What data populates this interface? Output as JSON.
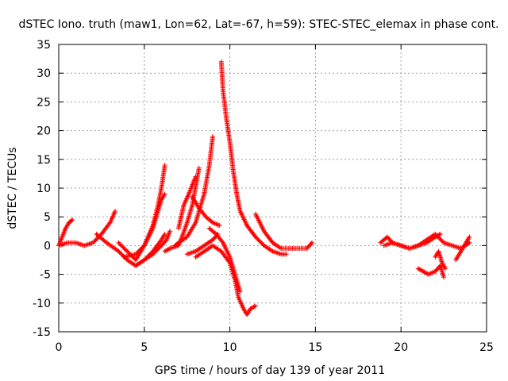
{
  "chart_data": {
    "type": "scatter",
    "title": "dSTEC Iono. truth (maw1, Lon=62, Lat=-67, h=59): STEC-STEC_elemax in phase cont.",
    "xlabel": "GPS time / hours of day 139 of year 2011",
    "ylabel": "dSTEC  / TECUs",
    "xlim": [
      0,
      25
    ],
    "ylim": [
      -15,
      35
    ],
    "xticks": [
      0,
      5,
      10,
      15,
      20,
      25
    ],
    "yticks": [
      -15,
      -10,
      -5,
      0,
      5,
      10,
      15,
      20,
      25,
      30,
      35
    ],
    "grid": true,
    "marker": "+",
    "color": "#ff0000",
    "series": [
      {
        "x": [
          0.0,
          0.2,
          0.4,
          0.6,
          0.8
        ],
        "y": [
          0.0,
          1.5,
          3.0,
          4.0,
          4.5
        ]
      },
      {
        "x": [
          0.0,
          0.5,
          1.0,
          1.5,
          2.0,
          2.5,
          3.0,
          3.3
        ],
        "y": [
          0.0,
          0.5,
          0.5,
          0.0,
          0.5,
          2.0,
          4.0,
          6.0
        ]
      },
      {
        "x": [
          2.2,
          2.8,
          3.5,
          4.0,
          4.5,
          5.0,
          5.5,
          6.0,
          6.2
        ],
        "y": [
          2.0,
          0.5,
          -1.0,
          -2.5,
          -3.5,
          -2.5,
          -1.0,
          1.0,
          2.0
        ]
      },
      {
        "x": [
          3.5,
          4.0,
          4.5,
          5.0,
          5.5,
          5.8,
          6.0,
          6.2
        ],
        "y": [
          0.5,
          -1.0,
          -2.5,
          0.0,
          3.5,
          7.0,
          10.0,
          14.0
        ]
      },
      {
        "x": [
          3.8,
          4.5,
          5.0,
          5.5,
          5.8,
          6.0,
          6.2
        ],
        "y": [
          -2.0,
          -1.5,
          0.0,
          3.0,
          6.0,
          8.0,
          9.0
        ]
      },
      {
        "x": [
          4.5,
          5.0,
          5.5,
          6.0,
          6.3,
          6.5
        ],
        "y": [
          -3.5,
          -2.5,
          -1.5,
          0.0,
          1.0,
          2.5
        ]
      },
      {
        "x": [
          6.2,
          6.5,
          7.0,
          7.2,
          7.5,
          7.8,
          8.2
        ],
        "y": [
          -1.0,
          -0.5,
          0.0,
          1.5,
          4.0,
          7.0,
          13.5
        ]
      },
      {
        "x": [
          6.8,
          7.0,
          7.5,
          8.0,
          8.5,
          8.8,
          9.0
        ],
        "y": [
          0.0,
          0.5,
          1.5,
          4.0,
          9.0,
          14.0,
          19.0
        ]
      },
      {
        "x": [
          7.0,
          7.3,
          7.6,
          8.0
        ],
        "y": [
          3.0,
          7.0,
          9.0,
          12.0
        ]
      },
      {
        "x": [
          7.5,
          8.0,
          8.5,
          9.0,
          9.3
        ],
        "y": [
          -1.5,
          -1.0,
          0.0,
          1.0,
          2.0
        ]
      },
      {
        "x": [
          7.8,
          8.2,
          8.6,
          9.0,
          9.4
        ],
        "y": [
          8.5,
          6.5,
          5.0,
          4.0,
          3.5
        ]
      },
      {
        "x": [
          8.0,
          8.5,
          9.0,
          9.5,
          10.0,
          10.3,
          10.5,
          10.8,
          11.0,
          11.2,
          11.5
        ],
        "y": [
          -2.0,
          -1.0,
          0.0,
          -1.0,
          -3.0,
          -6.0,
          -9.0,
          -11.0,
          -12.0,
          -11.0,
          -10.5
        ]
      },
      {
        "x": [
          8.8,
          9.2,
          9.6,
          10.0,
          10.3,
          10.6
        ],
        "y": [
          3.0,
          2.0,
          0.5,
          -2.0,
          -5.0,
          -8.0
        ]
      },
      {
        "x": [
          9.5,
          9.6,
          9.8,
          10.0,
          10.2,
          10.4,
          10.6,
          11.0,
          11.5,
          12.0,
          12.5,
          13.0,
          13.3
        ],
        "y": [
          32.0,
          27.0,
          22.0,
          18.0,
          13.0,
          9.0,
          6.0,
          3.5,
          1.5,
          0.0,
          -1.0,
          -1.5,
          -1.5
        ]
      },
      {
        "x": [
          11.5,
          12.0,
          12.5,
          13.0,
          13.5,
          14.0,
          14.5,
          14.8
        ],
        "y": [
          5.5,
          2.5,
          0.5,
          -0.5,
          -0.5,
          -0.5,
          -0.5,
          0.5
        ]
      },
      {
        "x": [
          18.8,
          19.2,
          19.5,
          20.0,
          20.5,
          21.0,
          21.5,
          22.0,
          22.5,
          23.0,
          23.5,
          24.0
        ],
        "y": [
          0.5,
          1.5,
          0.5,
          0.0,
          -0.5,
          0.0,
          1.0,
          2.0,
          0.5,
          0.0,
          -0.5,
          0.5
        ]
      },
      {
        "x": [
          19.0,
          19.5,
          20.0,
          20.5,
          21.0,
          21.5,
          22.0,
          22.3
        ],
        "y": [
          0.0,
          0.5,
          0.0,
          -0.5,
          0.0,
          0.5,
          1.5,
          2.0
        ]
      },
      {
        "x": [
          21.0,
          21.3,
          21.6,
          22.0,
          22.3,
          22.5
        ],
        "y": [
          -4.0,
          -4.5,
          -5.0,
          -4.5,
          -3.5,
          -5.5
        ]
      },
      {
        "x": [
          22.0,
          22.2,
          22.4,
          22.6
        ],
        "y": [
          -2.0,
          -1.0,
          -3.0,
          -4.0
        ]
      },
      {
        "x": [
          23.2,
          23.4,
          23.6,
          23.8,
          24.0
        ],
        "y": [
          -2.5,
          -1.5,
          -0.5,
          0.5,
          1.5
        ]
      }
    ]
  }
}
